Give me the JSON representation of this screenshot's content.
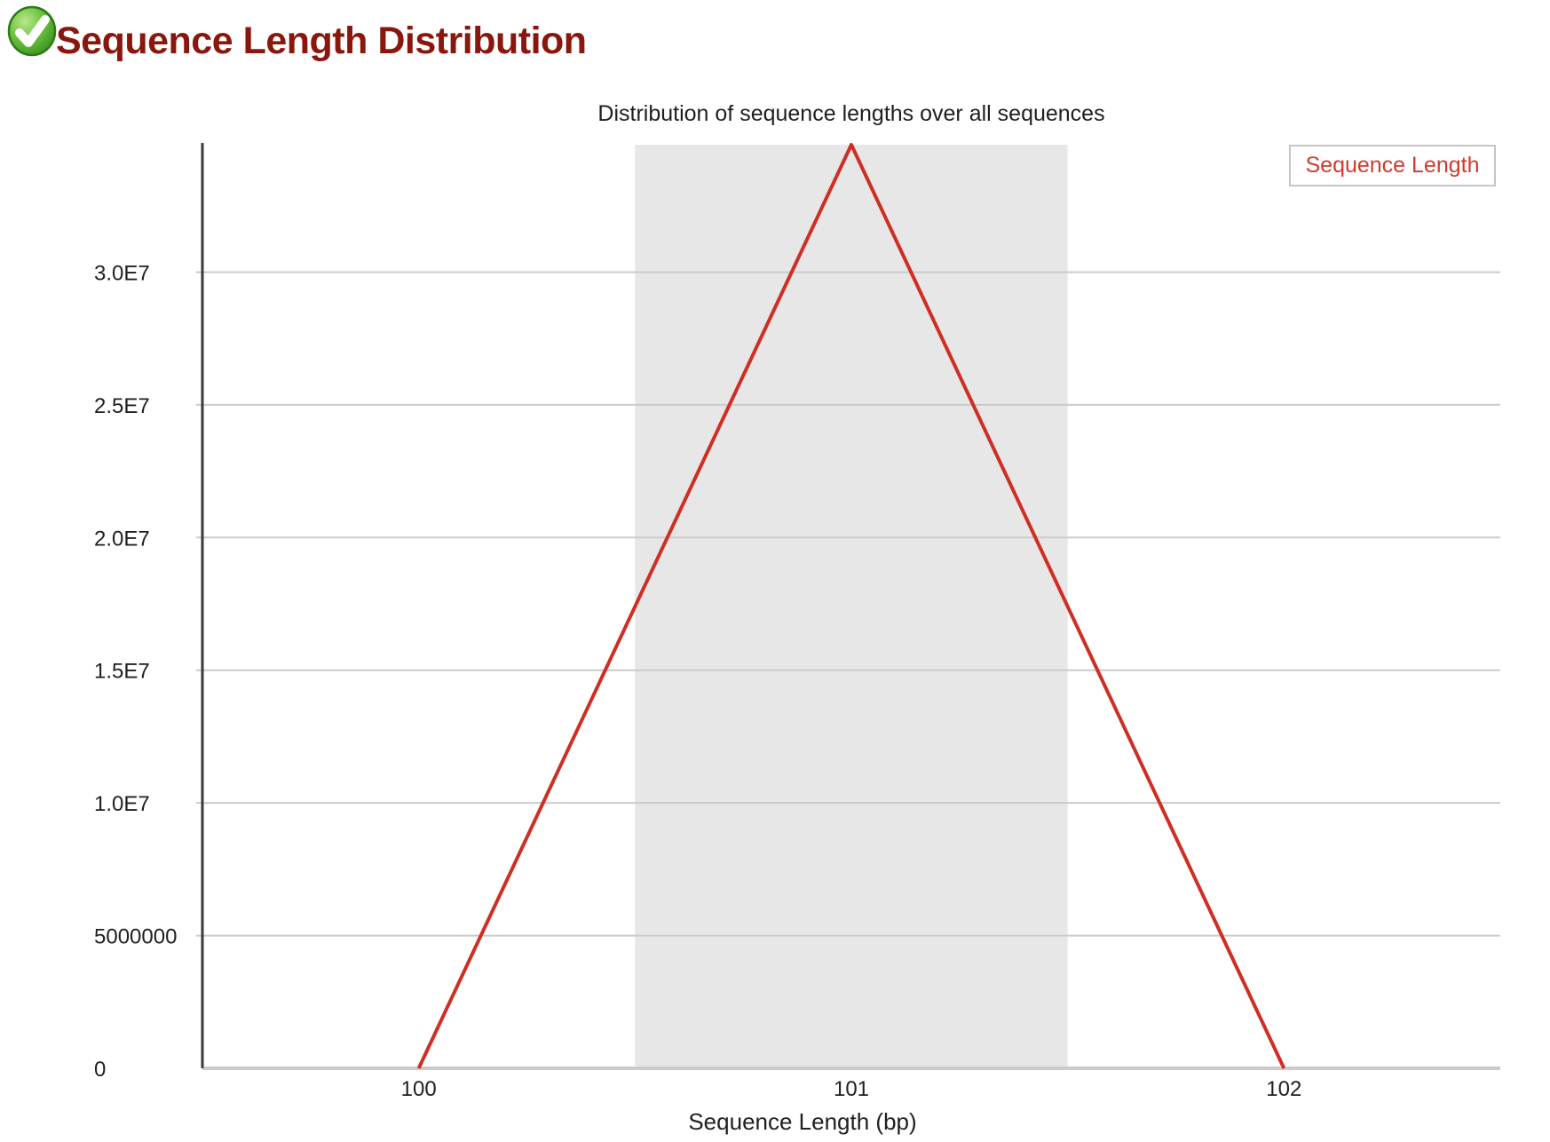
{
  "header": {
    "title": "Sequence Length Distribution",
    "status": "pass",
    "status_color": "#4aa52e",
    "title_color": "#8a170e"
  },
  "chart_data": {
    "type": "line",
    "title": "Distribution of sequence lengths over all sequences",
    "xlabel": "Sequence Length (bp)",
    "ylabel": "",
    "xlim": [
      99.5,
      102.5
    ],
    "ylim": [
      0,
      34800000
    ],
    "grid": "horizontal",
    "highlight_band": {
      "from": 100.5,
      "to": 101.5,
      "color": "#e7e7e7"
    },
    "x_ticks": [
      {
        "label": "100",
        "value": 100
      },
      {
        "label": "101",
        "value": 101
      },
      {
        "label": "102",
        "value": 102
      }
    ],
    "y_ticks": [
      {
        "label": "3.0E7",
        "value": 30000000
      },
      {
        "label": "2.5E7",
        "value": 25000000
      },
      {
        "label": "2.0E7",
        "value": 20000000
      },
      {
        "label": "1.5E7",
        "value": 15000000
      },
      {
        "label": "1.0E7",
        "value": 10000000
      },
      {
        "label": "5000000",
        "value": 5000000
      },
      {
        "label": "0",
        "value": 0
      }
    ],
    "series": [
      {
        "name": "Sequence Length",
        "color": "#cf2e24",
        "x": [
          100,
          101,
          102
        ],
        "values": [
          0,
          34800000,
          0
        ]
      }
    ],
    "legend": {
      "label": "Sequence Length",
      "position": "top-right",
      "text_color": "#d13a2e",
      "border_color": "#c6c6c6"
    }
  }
}
